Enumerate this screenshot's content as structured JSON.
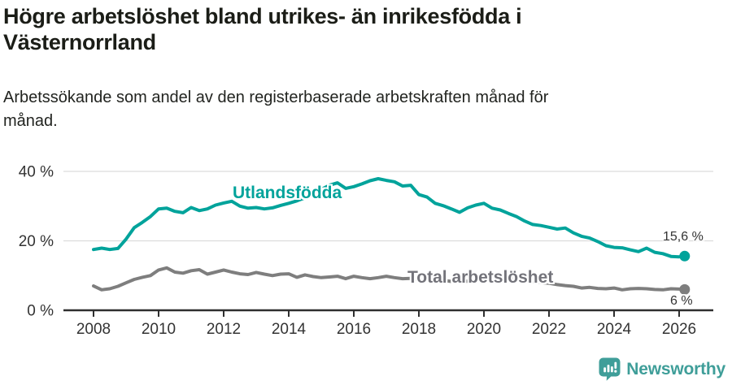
{
  "header": {
    "title": "Högre arbetslöshet bland utrikes- än inrikesfödda i\nVästernorrland",
    "subtitle": "Arbetssökande som andel av den registerbaserade arbetskraften månad för\nmånad."
  },
  "footer": {
    "brand": "Newsworthy",
    "logo_icon": "bar-chart-speech-bubble-icon"
  },
  "colors": {
    "accent_teal": "#00a39b",
    "series_gray": "#7e7e7e",
    "grid": "#dcdcdc",
    "axis": "#2f2f2f",
    "tick_text": "#333333",
    "logo_teal": "#3f9e99"
  },
  "chart_data": {
    "type": "line",
    "title": "Högre arbetslöshet bland utrikes- än inrikesfödda i Västernorrland",
    "subtitle": "Arbetssökande som andel av den registerbaserade arbetskraften månad för månad.",
    "grid": "horizontal-only",
    "legend_position": "inline-labels",
    "x_axis": {
      "ticks": [
        2008,
        2010,
        2012,
        2014,
        2016,
        2018,
        2020,
        2022,
        2024,
        2026
      ],
      "range": [
        2007.05,
        2027.05
      ]
    },
    "y_axis": {
      "ticks": [
        0,
        20,
        40
      ],
      "suffix": " %",
      "range": [
        0,
        42
      ]
    },
    "x": [
      2008,
      2008.25,
      2008.5,
      2008.75,
      2009,
      2009.25,
      2009.5,
      2009.75,
      2010,
      2010.25,
      2010.5,
      2010.75,
      2011,
      2011.25,
      2011.5,
      2011.75,
      2012,
      2012.25,
      2012.5,
      2012.75,
      2013,
      2013.25,
      2013.5,
      2013.75,
      2014,
      2014.25,
      2014.5,
      2014.75,
      2015,
      2015.25,
      2015.5,
      2015.75,
      2016,
      2016.25,
      2016.5,
      2016.75,
      2017,
      2017.25,
      2017.5,
      2017.75,
      2018,
      2018.25,
      2018.5,
      2018.75,
      2019,
      2019.25,
      2019.5,
      2019.75,
      2020,
      2020.25,
      2020.5,
      2020.75,
      2021,
      2021.25,
      2021.5,
      2021.75,
      2022,
      2022.25,
      2022.5,
      2022.75,
      2023,
      2023.25,
      2023.5,
      2023.75,
      2024,
      2024.25,
      2024.5,
      2024.75,
      2025,
      2025.25,
      2025.5,
      2025.75,
      2026,
      2026.17
    ],
    "series": [
      {
        "name": "Utlandsfödda",
        "color": "#00a39b",
        "end_label": "15,6 %",
        "end_value": 15.6,
        "y": [
          17.5,
          17.9,
          17.5,
          17.8,
          20.5,
          23.8,
          25.3,
          27.0,
          29.2,
          29.4,
          28.5,
          28.1,
          29.6,
          28.7,
          29.2,
          30.3,
          30.9,
          31.4,
          30.0,
          29.4,
          29.6,
          29.2,
          29.5,
          30.2,
          30.8,
          31.5,
          32.4,
          33.5,
          34.8,
          36.0,
          36.7,
          35.1,
          35.6,
          36.4,
          37.3,
          37.9,
          37.4,
          37.0,
          35.8,
          36.0,
          33.3,
          32.6,
          30.8,
          30.1,
          29.2,
          28.2,
          29.5,
          30.3,
          30.8,
          29.4,
          28.9,
          27.9,
          27.0,
          25.7,
          24.7,
          24.4,
          23.9,
          23.4,
          23.7,
          22.3,
          21.3,
          20.8,
          19.8,
          18.6,
          18.1,
          18.0,
          17.4,
          16.9,
          17.9,
          16.7,
          16.3,
          15.5,
          15.4,
          15.6
        ]
      },
      {
        "name": "Total arbetslöshet",
        "color": "#7e7e7e",
        "end_label": "6 %",
        "end_value": 6.0,
        "y": [
          7.0,
          5.9,
          6.2,
          6.9,
          7.9,
          8.9,
          9.5,
          10.0,
          11.6,
          12.2,
          11.0,
          10.7,
          11.4,
          11.7,
          10.4,
          11.0,
          11.6,
          11.0,
          10.5,
          10.3,
          10.9,
          10.4,
          10.0,
          10.4,
          10.5,
          9.5,
          10.2,
          9.7,
          9.4,
          9.6,
          9.8,
          9.1,
          9.8,
          9.4,
          9.1,
          9.4,
          9.8,
          9.4,
          9.1,
          9.2,
          8.9,
          8.6,
          8.4,
          8.6,
          8.3,
          8.1,
          8.4,
          8.6,
          8.8,
          9.9,
          10.1,
          9.6,
          9.2,
          8.8,
          8.3,
          8.0,
          7.8,
          7.4,
          7.1,
          6.9,
          6.4,
          6.6,
          6.3,
          6.2,
          6.4,
          5.9,
          6.2,
          6.3,
          6.2,
          6.0,
          5.9,
          6.2,
          6.1,
          6.0
        ]
      }
    ]
  }
}
